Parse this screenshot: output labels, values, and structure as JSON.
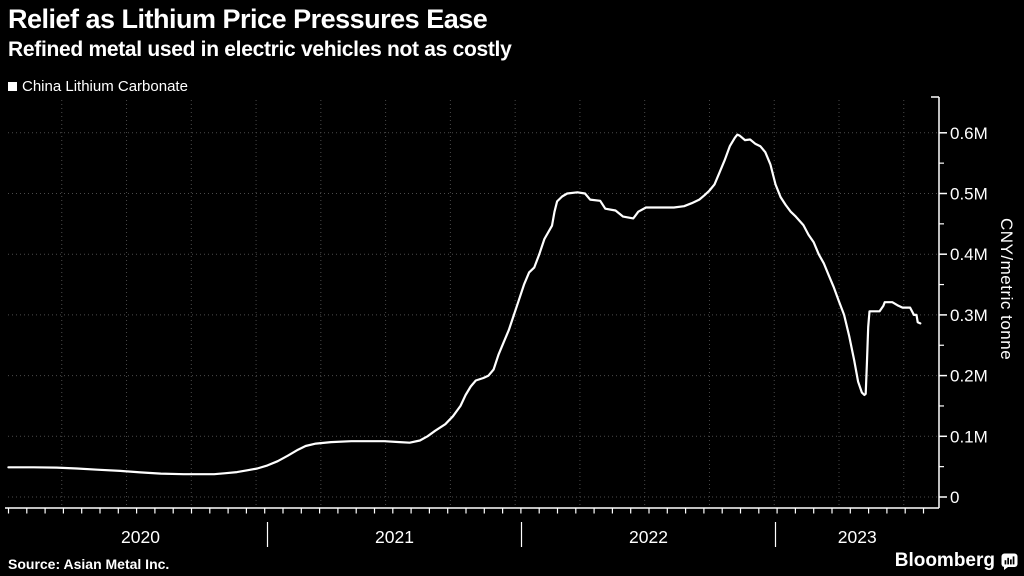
{
  "header": {
    "title": "Relief as Lithium Price Pressures Ease",
    "subtitle": "Refined metal used in electric vehicles not as costly"
  },
  "legend": {
    "marker": "white-square",
    "label": "China Lithium Carbonate"
  },
  "footer": {
    "source": "Source: Asian Metal Inc.",
    "brand": "Bloomberg",
    "brand_icon": "bloomberg-media-icon"
  },
  "colors": {
    "background": "#000000",
    "line": "#ffffff",
    "text": "#ffffff",
    "grid": "#4b4b4b",
    "axis": "#ffffff"
  },
  "chart_data": {
    "type": "line",
    "title": "Relief as Lithium Price Pressures Ease",
    "subtitle": "Refined metal used in electric vehicles not as costly",
    "ylabel": "CNY/metric tonne",
    "xlabel": "",
    "unit": "M CNY per metric tonne",
    "grid": "dotted",
    "legend_position": "top-left",
    "ylim": [
      0,
      0.65
    ],
    "xlim_years": [
      2019.98,
      2023.62
    ],
    "y_ticks": [
      "0",
      "0.1M",
      "0.2M",
      "0.3M",
      "0.4M",
      "0.5M",
      "0.6M"
    ],
    "y_tick_values": [
      0,
      0.1,
      0.2,
      0.3,
      0.4,
      0.5,
      0.6
    ],
    "x_ticks": [
      "2020",
      "2021",
      "2022",
      "2023"
    ],
    "x_tick_years": [
      2020,
      2021,
      2022,
      2023
    ],
    "series": [
      {
        "name": "China Lithium Carbonate",
        "points": [
          [
            2019.98,
            0.049
          ],
          [
            2020.08,
            0.049
          ],
          [
            2020.17,
            0.0485
          ],
          [
            2020.25,
            0.047
          ],
          [
            2020.33,
            0.045
          ],
          [
            2020.42,
            0.043
          ],
          [
            2020.5,
            0.0405
          ],
          [
            2020.58,
            0.0385
          ],
          [
            2020.67,
            0.0375
          ],
          [
            2020.79,
            0.0375
          ],
          [
            2020.83,
            0.039
          ],
          [
            2020.88,
            0.041
          ],
          [
            2020.92,
            0.044
          ],
          [
            2020.96,
            0.047
          ],
          [
            2021.0,
            0.052
          ],
          [
            2021.04,
            0.059
          ],
          [
            2021.08,
            0.068
          ],
          [
            2021.12,
            0.078
          ],
          [
            2021.15,
            0.084
          ],
          [
            2021.19,
            0.088
          ],
          [
            2021.25,
            0.0905
          ],
          [
            2021.33,
            0.092
          ],
          [
            2021.46,
            0.092
          ],
          [
            2021.52,
            0.0905
          ],
          [
            2021.56,
            0.0895
          ],
          [
            2021.6,
            0.093
          ],
          [
            2021.63,
            0.1
          ],
          [
            2021.66,
            0.109
          ],
          [
            2021.7,
            0.12
          ],
          [
            2021.73,
            0.133
          ],
          [
            2021.76,
            0.15
          ],
          [
            2021.78,
            0.168
          ],
          [
            2021.8,
            0.182
          ],
          [
            2021.82,
            0.192
          ],
          [
            2021.85,
            0.196
          ],
          [
            2021.87,
            0.2
          ],
          [
            2021.89,
            0.21
          ],
          [
            2021.91,
            0.235
          ],
          [
            2021.93,
            0.255
          ],
          [
            2021.95,
            0.275
          ],
          [
            2021.97,
            0.3
          ],
          [
            2021.99,
            0.325
          ],
          [
            2022.01,
            0.35
          ],
          [
            2022.03,
            0.37
          ],
          [
            2022.05,
            0.378
          ],
          [
            2022.07,
            0.4
          ],
          [
            2022.09,
            0.425
          ],
          [
            2022.12,
            0.447
          ],
          [
            2022.13,
            0.47
          ],
          [
            2022.14,
            0.487
          ],
          [
            2022.16,
            0.495
          ],
          [
            2022.18,
            0.5
          ],
          [
            2022.22,
            0.502
          ],
          [
            2022.25,
            0.5
          ],
          [
            2022.27,
            0.49
          ],
          [
            2022.31,
            0.488
          ],
          [
            2022.33,
            0.475
          ],
          [
            2022.37,
            0.472
          ],
          [
            2022.4,
            0.462
          ],
          [
            2022.44,
            0.459
          ],
          [
            2022.46,
            0.47
          ],
          [
            2022.49,
            0.477
          ],
          [
            2022.6,
            0.477
          ],
          [
            2022.64,
            0.479
          ],
          [
            2022.67,
            0.484
          ],
          [
            2022.7,
            0.49
          ],
          [
            2022.72,
            0.497
          ],
          [
            2022.74,
            0.505
          ],
          [
            2022.76,
            0.515
          ],
          [
            2022.78,
            0.535
          ],
          [
            2022.8,
            0.555
          ],
          [
            2022.82,
            0.578
          ],
          [
            2022.84,
            0.592
          ],
          [
            2022.85,
            0.597
          ],
          [
            2022.86,
            0.595
          ],
          [
            2022.88,
            0.588
          ],
          [
            2022.9,
            0.589
          ],
          [
            2022.92,
            0.582
          ],
          [
            2022.94,
            0.578
          ],
          [
            2022.96,
            0.568
          ],
          [
            2022.98,
            0.548
          ],
          [
            2023.0,
            0.515
          ],
          [
            2023.02,
            0.494
          ],
          [
            2023.04,
            0.481
          ],
          [
            2023.06,
            0.47
          ],
          [
            2023.08,
            0.462
          ],
          [
            2023.11,
            0.448
          ],
          [
            2023.13,
            0.432
          ],
          [
            2023.15,
            0.42
          ],
          [
            2023.17,
            0.4
          ],
          [
            2023.19,
            0.385
          ],
          [
            2023.21,
            0.365
          ],
          [
            2023.23,
            0.345
          ],
          [
            2023.25,
            0.322
          ],
          [
            2023.27,
            0.3
          ],
          [
            2023.29,
            0.265
          ],
          [
            2023.31,
            0.225
          ],
          [
            2023.325,
            0.19
          ],
          [
            2023.34,
            0.172
          ],
          [
            2023.35,
            0.168
          ],
          [
            2023.355,
            0.17
          ],
          [
            2023.36,
            0.22
          ],
          [
            2023.365,
            0.28
          ],
          [
            2023.37,
            0.306
          ],
          [
            2023.41,
            0.306
          ],
          [
            2023.425,
            0.315
          ],
          [
            2023.43,
            0.321
          ],
          [
            2023.46,
            0.321
          ],
          [
            2023.48,
            0.316
          ],
          [
            2023.5,
            0.312
          ],
          [
            2023.53,
            0.312
          ],
          [
            2023.545,
            0.3
          ],
          [
            2023.555,
            0.3
          ],
          [
            2023.56,
            0.288
          ],
          [
            2023.57,
            0.286
          ]
        ]
      }
    ]
  }
}
